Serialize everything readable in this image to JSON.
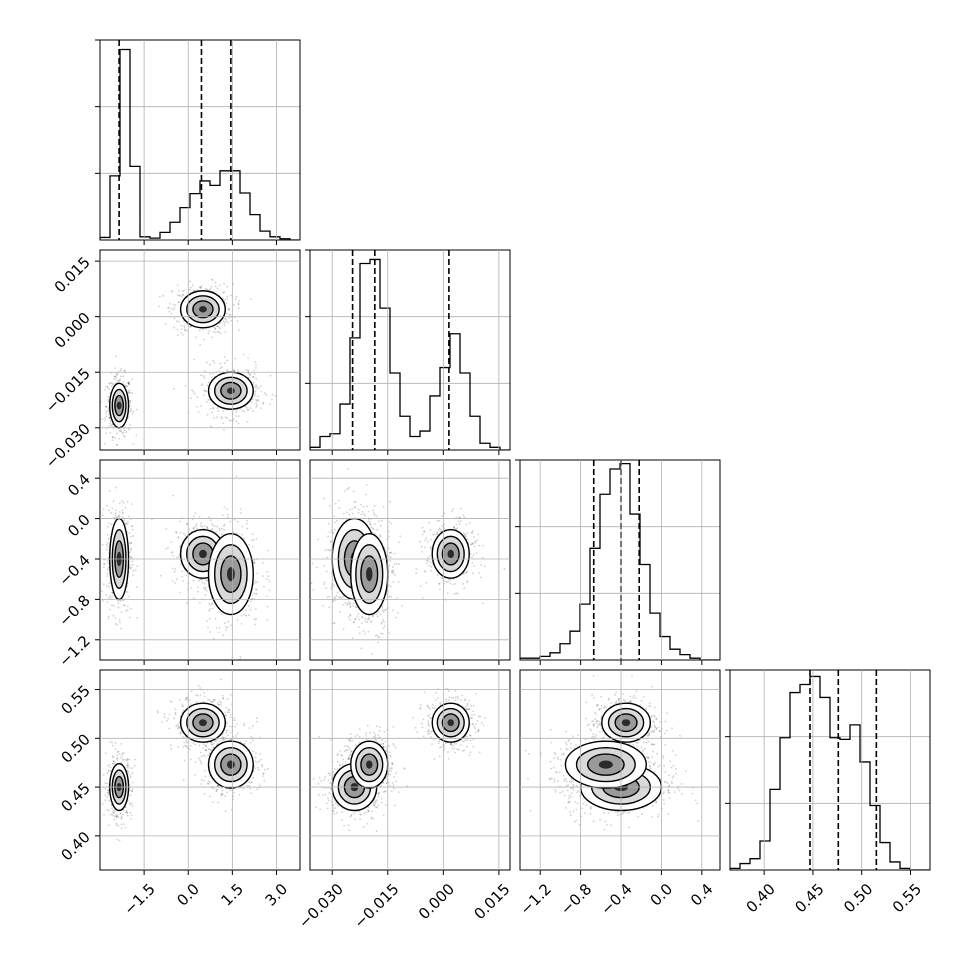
{
  "chart_data": {
    "type": "corner",
    "grid": true,
    "title": "",
    "parameters": [
      {
        "range": [
          -3.0,
          3.8
        ],
        "ticks": [
          -1.5,
          0.0,
          1.5,
          3.0
        ],
        "tick_labels": [
          "−1.5",
          "0.0",
          "1.5",
          "3.0"
        ]
      },
      {
        "range": [
          -0.036,
          0.018
        ],
        "ticks": [
          -0.03,
          -0.015,
          0.0,
          0.015
        ],
        "tick_labels": [
          "−0.030",
          "−0.015",
          "0.000",
          "0.015"
        ]
      },
      {
        "range": [
          -1.4,
          0.58
        ],
        "ticks": [
          -1.2,
          -0.8,
          -0.4,
          0.0,
          0.4
        ],
        "tick_labels": [
          "−1.2",
          "−0.8",
          "−0.4",
          "0.0",
          "0.4"
        ]
      },
      {
        "range": [
          0.365,
          0.57
        ],
        "ticks": [
          0.4,
          0.45,
          0.5,
          0.55
        ],
        "tick_labels": [
          "0.40",
          "0.45",
          "0.50",
          "0.55"
        ]
      }
    ],
    "histograms": [
      {
        "param": 0,
        "bin_edges": [
          -3.0,
          -2.66,
          -2.32,
          -1.98,
          -1.64,
          -1.3,
          -0.96,
          -0.62,
          -0.28,
          0.06,
          0.4,
          0.74,
          1.08,
          1.42,
          1.76,
          2.1,
          2.44,
          2.78,
          3.12,
          3.46,
          3.8
        ],
        "counts": [
          0.4,
          10.1,
          30.0,
          11.6,
          0.5,
          0.3,
          1.2,
          2.8,
          5.1,
          7.3,
          9.3,
          8.6,
          10.9,
          10.9,
          7.4,
          4.0,
          1.4,
          0.5,
          0.2,
          0.0
        ],
        "ylim": [
          0,
          31.5
        ],
        "quantiles": [
          -2.35,
          0.45,
          1.45
        ]
      },
      {
        "param": 1,
        "bin_edges": [
          -0.036,
          -0.0333,
          -0.0306,
          -0.0279,
          -0.0252,
          -0.0225,
          -0.0198,
          -0.0171,
          -0.0144,
          -0.0117,
          -0.009,
          -0.0063,
          -0.0036,
          -0.0009,
          0.0018,
          0.0045,
          0.0072,
          0.0099,
          0.0126,
          0.0153,
          0.018
        ],
        "counts": [
          0.2,
          1.0,
          1.2,
          3.4,
          8.3,
          13.8,
          14.1,
          10.5,
          5.7,
          2.5,
          1.0,
          1.4,
          4.0,
          6.1,
          8.6,
          5.7,
          2.5,
          0.5,
          0.2,
          0.0
        ],
        "ylim": [
          0,
          14.8
        ],
        "quantiles": [
          -0.0245,
          -0.0185,
          0.0015
        ]
      },
      {
        "param": 2,
        "bin_edges": [
          -1.4,
          -1.301,
          -1.202,
          -1.103,
          -1.004,
          -0.905,
          -0.806,
          -0.707,
          -0.608,
          -0.509,
          -0.41,
          -0.311,
          -0.212,
          -0.113,
          -0.014,
          0.085,
          0.184,
          0.283,
          0.382,
          0.481,
          0.58
        ],
        "counts": [
          0.1,
          0.1,
          0.2,
          0.4,
          0.9,
          1.6,
          3.1,
          6.2,
          9.2,
          10.6,
          10.9,
          8.1,
          5.3,
          2.6,
          1.3,
          0.6,
          0.3,
          0.1,
          0.0,
          0.0
        ],
        "ylim": [
          0,
          11.1
        ],
        "quantiles": [
          -0.67,
          -0.4,
          -0.22
        ]
      },
      {
        "param": 3,
        "bin_edges": [
          0.365,
          0.37525,
          0.3855,
          0.39575,
          0.406,
          0.41625,
          0.4265,
          0.43675,
          0.447,
          0.45725,
          0.4675,
          0.47775,
          0.488,
          0.49825,
          0.5085,
          0.51875,
          0.529,
          0.53925,
          0.5495,
          0.55975,
          0.57
        ],
        "counts": [
          0.1,
          0.4,
          0.7,
          1.8,
          5.0,
          8.2,
          11.0,
          11.5,
          12.0,
          10.7,
          8.2,
          8.1,
          9.0,
          6.7,
          4.0,
          1.7,
          0.5,
          0.1,
          0.0,
          0.0
        ],
        "ylim": [
          0,
          12.4
        ],
        "quantiles": [
          0.447,
          0.476,
          0.515
        ]
      }
    ],
    "modes": [
      {
        "mean": [
          -2.35,
          -0.024,
          -0.4,
          0.45
        ],
        "sd": [
          0.16,
          0.003,
          0.2,
          0.012
        ]
      },
      {
        "mean": [
          0.5,
          0.002,
          -0.35,
          0.516
        ],
        "sd": [
          0.38,
          0.0025,
          0.12,
          0.01
        ]
      },
      {
        "mean": [
          1.45,
          -0.02,
          -0.55,
          0.473
        ],
        "sd": [
          0.38,
          0.0025,
          0.2,
          0.012
        ]
      }
    ]
  }
}
